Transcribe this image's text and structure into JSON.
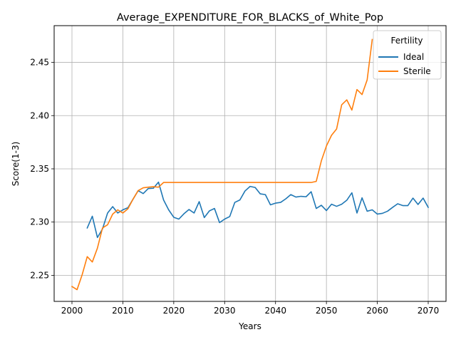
{
  "chart_data": {
    "type": "line",
    "title": "Average_EXPENDITURE_FOR_BLACKS_of_White_Pop",
    "xlabel": "Years",
    "ylabel": "Score(1-3)",
    "xlim": [
      1996.5,
      2073.5
    ],
    "ylim": [
      2.2255,
      2.4845
    ],
    "xticks": [
      2000,
      2010,
      2020,
      2030,
      2040,
      2050,
      2060,
      2070
    ],
    "xtick_labels": [
      "2000",
      "2010",
      "2020",
      "2030",
      "2040",
      "2050",
      "2060",
      "2070"
    ],
    "yticks": [
      2.25,
      2.3,
      2.35,
      2.4,
      2.45
    ],
    "ytick_labels": [
      "2.25",
      "2.30",
      "2.35",
      "2.40",
      "2.45"
    ],
    "grid": true,
    "legend": {
      "title": "Fertility",
      "placement": "top-right"
    },
    "series": [
      {
        "name": "Ideal",
        "color": "#1f77b4",
        "x": [
          2003,
          2004,
          2005,
          2006,
          2007,
          2008,
          2009,
          2010,
          2011,
          2012,
          2013,
          2014,
          2015,
          2016,
          2017,
          2018,
          2019,
          2020,
          2021,
          2022,
          2023,
          2024,
          2025,
          2026,
          2027,
          2028,
          2029,
          2030,
          2031,
          2032,
          2033,
          2034,
          2035,
          2036,
          2037,
          2038,
          2039,
          2040,
          2041,
          2042,
          2043,
          2044,
          2045,
          2046,
          2047,
          2048,
          2049,
          2050,
          2051,
          2052,
          2053,
          2054,
          2055,
          2056,
          2057,
          2058,
          2059,
          2060,
          2061,
          2062,
          2063,
          2064,
          2065,
          2066,
          2067,
          2068,
          2069,
          2070
        ],
        "values": [
          2.2945,
          2.3055,
          2.2855,
          2.2935,
          2.3085,
          2.3145,
          2.3085,
          2.3115,
          2.3135,
          2.3215,
          2.3295,
          2.3268,
          2.3315,
          2.3318,
          2.3375,
          2.3208,
          2.3115,
          2.3045,
          2.3028,
          2.3078,
          2.3118,
          2.3085,
          2.3192,
          2.3042,
          2.3105,
          2.3128,
          2.2995,
          2.3028,
          2.3052,
          2.3185,
          2.3208,
          2.3292,
          2.3335,
          2.3325,
          2.3265,
          2.3258,
          2.3162,
          2.3178,
          2.3185,
          2.3218,
          2.3258,
          2.3235,
          2.3242,
          2.3238,
          2.3285,
          2.3128,
          2.3158,
          2.3108,
          2.3168,
          2.3148,
          2.3168,
          2.3205,
          2.3275,
          2.3085,
          2.3228,
          2.3102,
          2.3115,
          2.3075,
          2.3082,
          2.3102,
          2.3138,
          2.3172,
          2.3155,
          2.3155,
          2.3225,
          2.3165,
          2.3225,
          2.3138
        ]
      },
      {
        "name": "Sterile",
        "color": "#ff7f0e",
        "x": [
          2000,
          2001,
          2002,
          2003,
          2004,
          2005,
          2006,
          2007,
          2008,
          2009,
          2010,
          2011,
          2012,
          2013,
          2014,
          2015,
          2016,
          2017,
          2018,
          2019,
          2020,
          2021,
          2022,
          2023,
          2024,
          2025,
          2026,
          2027,
          2028,
          2029,
          2030,
          2031,
          2032,
          2033,
          2034,
          2035,
          2036,
          2037,
          2038,
          2039,
          2040,
          2041,
          2042,
          2043,
          2044,
          2045,
          2046,
          2047,
          2048,
          2049,
          2050,
          2051,
          2052,
          2053,
          2054,
          2055,
          2056,
          2057,
          2058,
          2059
        ],
        "values": [
          2.2395,
          2.2365,
          2.2505,
          2.2675,
          2.2625,
          2.2755,
          2.2945,
          2.2975,
          2.3075,
          2.3115,
          2.3085,
          2.3125,
          2.3215,
          2.3295,
          2.3322,
          2.3328,
          2.3332,
          2.3328,
          2.3372,
          2.3372,
          2.3372,
          2.3372,
          2.3372,
          2.3372,
          2.3372,
          2.3372,
          2.3372,
          2.3372,
          2.3372,
          2.3372,
          2.3372,
          2.3372,
          2.3372,
          2.3372,
          2.3372,
          2.3372,
          2.3372,
          2.3372,
          2.3372,
          2.3372,
          2.3372,
          2.3372,
          2.3372,
          2.3372,
          2.3372,
          2.3372,
          2.3372,
          2.3372,
          2.3382,
          2.3575,
          2.3715,
          2.3815,
          2.3875,
          2.4102,
          2.4148,
          2.4052,
          2.4245,
          2.4198,
          2.4335,
          2.4715
        ]
      }
    ]
  }
}
